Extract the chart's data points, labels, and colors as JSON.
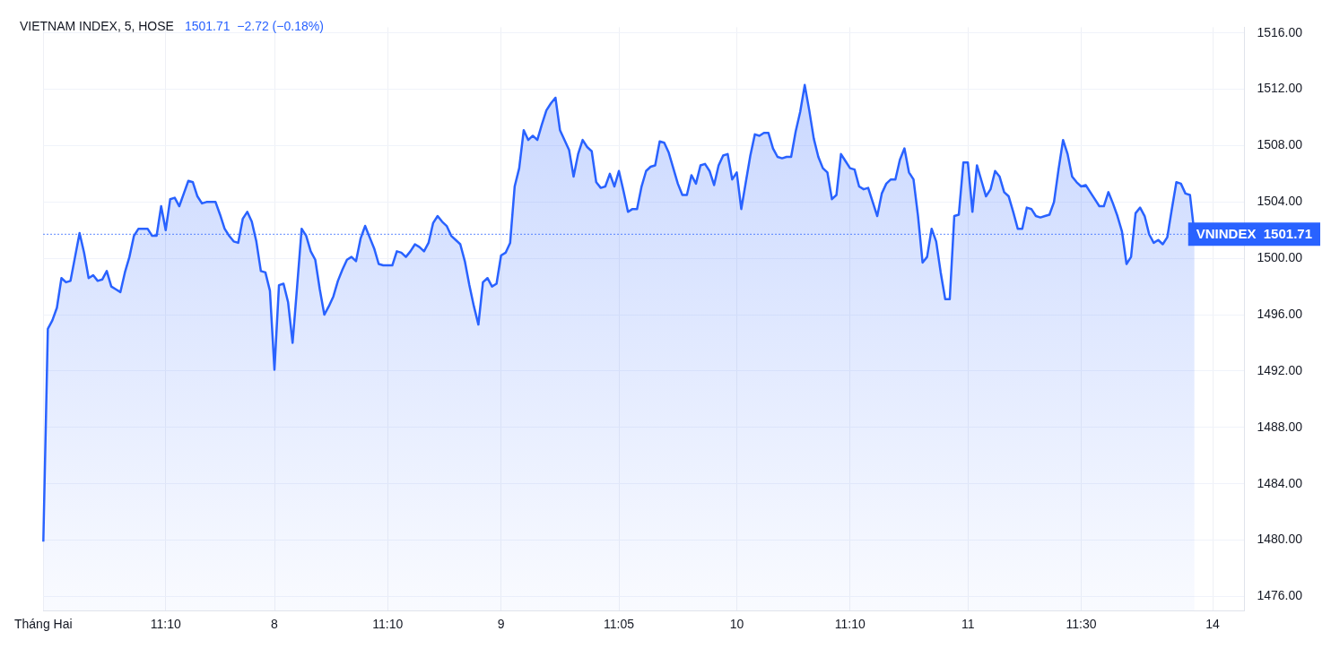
{
  "chart_data": {
    "type": "area",
    "title": "VIETNAM INDEX, 5, HOSE",
    "subtitle": "1501.71  −2.72 (−0.18%)",
    "categories": [
      "Tháng Hai",
      null,
      null,
      null,
      null,
      null,
      null,
      null,
      null,
      null,
      null,
      null,
      null,
      null,
      null,
      null,
      null,
      null,
      null,
      null,
      null,
      null,
      null,
      null,
      null,
      null,
      null,
      "11:10",
      null,
      null,
      null,
      null,
      null,
      null,
      null,
      null,
      null,
      null,
      null,
      null,
      null,
      null,
      null,
      null,
      null,
      null,
      null,
      null,
      null,
      null,
      null,
      "8",
      null,
      null,
      null,
      null,
      null,
      null,
      null,
      null,
      null,
      null,
      null,
      null,
      null,
      null,
      null,
      null,
      null,
      null,
      null,
      null,
      null,
      null,
      null,
      null,
      "11:10",
      null,
      null,
      null,
      null,
      null,
      null,
      null,
      null,
      null,
      null,
      null,
      null,
      null,
      null,
      null,
      null,
      null,
      null,
      null,
      null,
      null,
      null,
      null,
      null,
      "9",
      null,
      null,
      null,
      null,
      null,
      null,
      null,
      null,
      null,
      null,
      null,
      null,
      null,
      null,
      null,
      null,
      null,
      null,
      null,
      null,
      null,
      null,
      null,
      null,
      null,
      "11:05",
      null,
      null,
      null,
      null,
      null,
      null,
      null,
      null,
      null,
      null,
      null,
      null,
      null,
      null,
      null,
      null,
      null,
      null,
      null,
      null,
      null,
      null,
      null,
      null,
      null,
      "10",
      null,
      null,
      null,
      null,
      null,
      null,
      null,
      null,
      null,
      null,
      null,
      null,
      null,
      null,
      null,
      null,
      null,
      null,
      null,
      null,
      null,
      null,
      null,
      null,
      "11:10",
      null,
      null,
      null,
      null,
      null,
      null,
      null,
      null,
      null,
      null,
      null,
      null,
      null,
      null,
      null,
      null,
      null,
      null,
      null,
      null,
      null,
      null,
      null,
      null,
      null,
      "11",
      null,
      null,
      null,
      null,
      null,
      null,
      null,
      null,
      null,
      null,
      null,
      null,
      null,
      null,
      null,
      null,
      null,
      null,
      null,
      null,
      null,
      null,
      null,
      null,
      "11:30",
      null,
      null,
      null,
      null,
      null,
      null,
      null,
      null,
      null,
      null,
      null,
      null,
      null,
      null,
      null,
      null,
      null,
      null,
      null,
      null,
      null,
      null,
      null,
      null,
      null,
      null,
      null,
      null,
      "14",
      null,
      null,
      null,
      null,
      null,
      null,
      null
    ],
    "series": [
      {
        "color": "#2962ff",
        "values": [
          1479.9,
          1495.0,
          1495.6,
          1496.5,
          1498.6,
          1498.3,
          1498.4,
          1500.1,
          1501.8,
          1500.4,
          1498.6,
          1498.8,
          1498.4,
          1498.5,
          1499.1,
          1498.0,
          1497.8,
          1497.6,
          1499.0,
          1500.1,
          1501.6,
          1502.1,
          1502.1,
          1502.1,
          1501.6,
          1501.6,
          1503.7,
          1502.0,
          1504.2,
          1504.3,
          1503.7,
          1504.6,
          1505.5,
          1505.4,
          1504.4,
          1503.9,
          1504.0,
          1504.0,
          1504.0,
          1503.1,
          1502.1,
          1501.6,
          1501.2,
          1501.1,
          1502.8,
          1503.3,
          1502.6,
          1501.2,
          1499.1,
          1499.0,
          1497.7,
          1492.1,
          1498.1,
          1498.2,
          1496.9,
          1494.0,
          1498.0,
          1502.1,
          1501.6,
          1500.5,
          1499.9,
          1497.8,
          1496.0,
          1496.6,
          1497.3,
          1498.4,
          1499.2,
          1499.9,
          1500.1,
          1499.8,
          1501.4,
          1502.3,
          1501.5,
          1500.7,
          1499.6,
          1499.5,
          1499.5,
          1499.5,
          1500.5,
          1500.4,
          1500.1,
          1500.5,
          1501.0,
          1500.8,
          1500.5,
          1501.1,
          1502.5,
          1503.0,
          1502.6,
          1502.3,
          1501.6,
          1501.3,
          1501.0,
          1499.8,
          1498.1,
          1496.6,
          1495.3,
          1498.3,
          1498.6,
          1498.0,
          1498.2,
          1500.2,
          1500.4,
          1501.1,
          1505.1,
          1506.4,
          1509.1,
          1508.4,
          1508.7,
          1508.4,
          1509.5,
          1510.5,
          1511.0,
          1511.4,
          1509.1,
          1508.4,
          1507.7,
          1505.8,
          1507.4,
          1508.4,
          1507.9,
          1507.6,
          1505.4,
          1505.0,
          1505.1,
          1506.0,
          1505.1,
          1506.2,
          1504.8,
          1503.3,
          1503.5,
          1503.5,
          1505.1,
          1506.2,
          1506.5,
          1506.6,
          1508.3,
          1508.2,
          1507.5,
          1506.4,
          1505.3,
          1504.5,
          1504.5,
          1505.9,
          1505.3,
          1506.6,
          1506.7,
          1506.2,
          1505.2,
          1506.6,
          1507.3,
          1507.4,
          1505.6,
          1506.1,
          1503.5,
          1505.4,
          1507.3,
          1508.8,
          1508.7,
          1508.9,
          1508.9,
          1507.8,
          1507.2,
          1507.1,
          1507.2,
          1507.2,
          1509.0,
          1510.4,
          1512.3,
          1510.5,
          1508.5,
          1507.2,
          1506.4,
          1506.1,
          1504.2,
          1504.5,
          1507.4,
          1506.9,
          1506.4,
          1506.3,
          1505.1,
          1504.9,
          1505.0,
          1504.0,
          1503.0,
          1504.6,
          1505.3,
          1505.6,
          1505.6,
          1507.0,
          1507.8,
          1506.1,
          1505.6,
          1503.0,
          1499.7,
          1500.1,
          1502.1,
          1501.2,
          1499.0,
          1497.1,
          1497.1,
          1503.0,
          1503.1,
          1506.8,
          1506.8,
          1503.3,
          1506.6,
          1505.5,
          1504.4,
          1504.9,
          1506.2,
          1505.8,
          1504.7,
          1504.4,
          1503.3,
          1502.1,
          1502.1,
          1503.6,
          1503.5,
          1503.0,
          1502.9,
          1503.0,
          1503.1,
          1504.0,
          1506.3,
          1508.4,
          1507.4,
          1505.8,
          1505.4,
          1505.1,
          1505.2,
          1504.7,
          1504.2,
          1503.7,
          1503.7,
          1504.7,
          1503.9,
          1503.0,
          1501.9,
          1499.6,
          1500.1,
          1503.2,
          1503.6,
          1503.0,
          1501.7,
          1501.1,
          1501.3,
          1501.0,
          1501.5,
          1503.5,
          1505.4,
          1505.3,
          1504.6,
          1504.5,
          1501.71,
          null,
          null,
          null,
          null,
          null,
          null,
          null,
          null,
          null,
          null,
          null
        ]
      }
    ],
    "ylim": [
      1475,
      1516.4
    ],
    "yticks": [
      {
        "value": 1476,
        "label": "1476.00"
      },
      {
        "value": 1480,
        "label": "1480.00"
      },
      {
        "value": 1484,
        "label": "1484.00"
      },
      {
        "value": 1488,
        "label": "1488.00"
      },
      {
        "value": 1492,
        "label": "1492.00"
      },
      {
        "value": 1496,
        "label": "1496.00"
      },
      {
        "value": 1500,
        "label": "1500.00"
      },
      {
        "value": 1504,
        "label": "1504.00"
      },
      {
        "value": 1508,
        "label": "1508.00"
      },
      {
        "value": 1512,
        "label": "1512.00"
      },
      {
        "value": 1516,
        "label": "1516.00"
      }
    ],
    "ref_lines": [
      {
        "axis": "y",
        "value": 1501.71,
        "label": "VNINDEX  1501.71",
        "color": "#2962ff",
        "line_style": "dotted"
      }
    ],
    "grid": true,
    "legend": false,
    "marker": "none",
    "line_style": "solid"
  }
}
